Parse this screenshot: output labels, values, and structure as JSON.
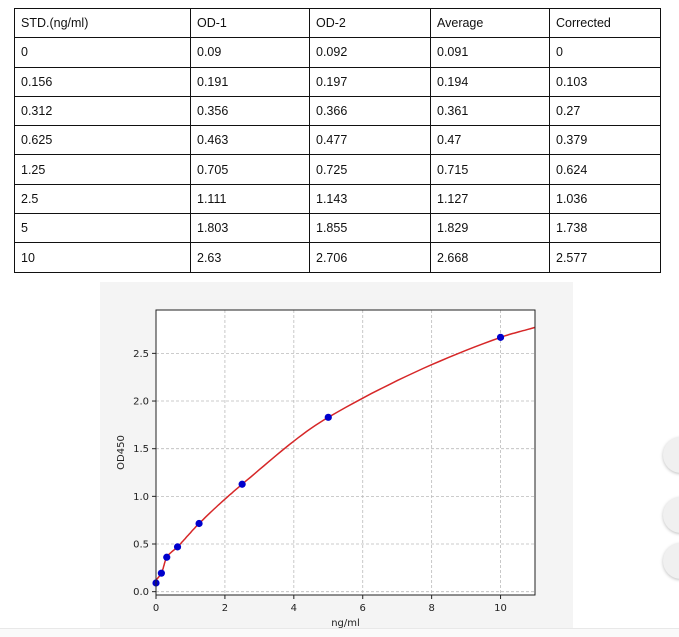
{
  "table": {
    "headers": [
      "STD.(ng/ml)",
      "OD-1",
      "OD-2",
      "Average",
      "Corrected"
    ],
    "rows": [
      [
        "0",
        "0.09",
        "0.092",
        "0.091",
        "0"
      ],
      [
        "0.156",
        "0.191",
        "0.197",
        "0.194",
        "0.103"
      ],
      [
        "0.312",
        "0.356",
        "0.366",
        "0.361",
        "0.27"
      ],
      [
        "0.625",
        "0.463",
        "0.477",
        "0.47",
        "0.379"
      ],
      [
        "1.25",
        "0.705",
        "0.725",
        "0.715",
        "0.624"
      ],
      [
        "2.5",
        "1.111",
        "1.143",
        "1.127",
        "1.036"
      ],
      [
        "5",
        "1.803",
        "1.855",
        "1.829",
        "1.738"
      ],
      [
        "10",
        "2.63",
        "2.706",
        "2.668",
        "2.577"
      ]
    ]
  },
  "chart_data": {
    "type": "scatter",
    "xlabel": "ng/ml",
    "ylabel": "OD450",
    "xlim": [
      0,
      11
    ],
    "ylim": [
      -0.035,
      2.955
    ],
    "xticks": [
      "0",
      "2",
      "4",
      "6",
      "8",
      "10"
    ],
    "yticks": [
      "0.0",
      "0.5",
      "1.0",
      "1.5",
      "2.0",
      "2.5"
    ],
    "grid": true,
    "points": {
      "x": [
        0,
        0.156,
        0.312,
        0.625,
        1.25,
        2.5,
        5,
        10
      ],
      "y": [
        0.091,
        0.194,
        0.361,
        0.47,
        0.715,
        1.127,
        1.829,
        2.668
      ]
    },
    "colors": {
      "points": "#0000cc",
      "curve": "#d62728"
    }
  }
}
